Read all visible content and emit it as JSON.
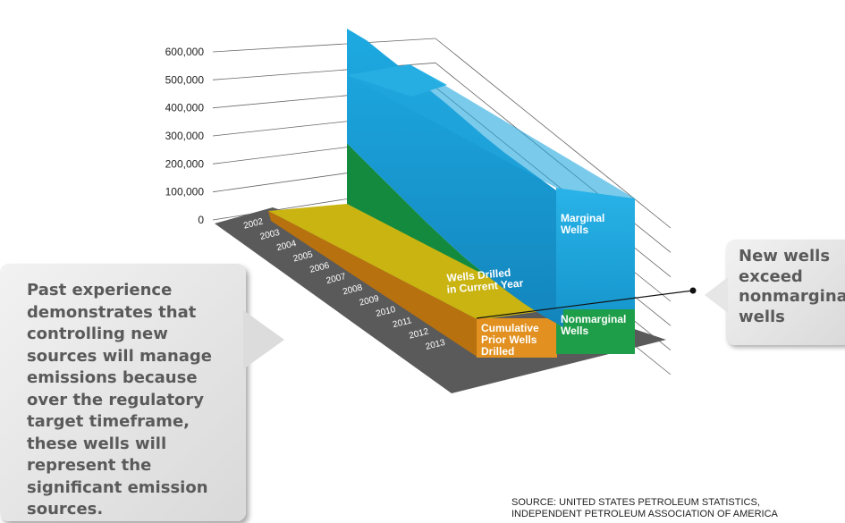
{
  "colors": {
    "marginal": "#1a9fd6",
    "nonmarginal": "#1f9e4a",
    "cumulative": "#e2901f",
    "current_year": "#c9b412",
    "floor": "#5a5a5a",
    "gridline": "#666666"
  },
  "chart_data": {
    "type": "area",
    "title": "",
    "xlabel": "",
    "ylabel": "",
    "ylim": [
      0,
      600000
    ],
    "y_ticks": [
      "0",
      "100,000",
      "200,000",
      "300,000",
      "400,000",
      "500,000",
      "600,000"
    ],
    "y_tick_values": [
      0,
      100000,
      200000,
      300000,
      400000,
      500000,
      600000
    ],
    "x": [
      "2002",
      "2003",
      "2004",
      "2005",
      "2006",
      "2007",
      "2008",
      "2009",
      "2010",
      "2011",
      "2012",
      "2013"
    ],
    "series": [
      {
        "name": "Marginal Wells",
        "values": [
          480000,
          475000,
          462000,
          450000,
          438000,
          425000,
          410000,
          395000,
          382000,
          372000,
          362000,
          352000
        ]
      },
      {
        "name": "Nonmarginal Wells",
        "values": [
          170000,
          150000,
          130000,
          110000,
          90000,
          72000,
          55000,
          42000,
          30000,
          20000,
          13000,
          10000
        ]
      },
      {
        "name": "Cumulative Prior Wells Drilled",
        "values": [
          0,
          8000,
          16000,
          24000,
          32000,
          40000,
          48000,
          56000,
          64000,
          72000,
          80000,
          88000
        ]
      },
      {
        "name": "Wells Drilled in Current Year",
        "values": [
          35000,
          35000,
          35000,
          35000,
          35000,
          35000,
          35000,
          35000,
          35000,
          35000,
          35000,
          35000
        ]
      }
    ],
    "labels": {
      "marginal": [
        "Marginal",
        "Wells"
      ],
      "nonmarginal": [
        "Nonmarginal",
        "Wells"
      ],
      "cumulative": [
        "Cumulative",
        "Prior Wells",
        "Drilled"
      ],
      "current_year": [
        "Wells Drilled",
        "in Current Year"
      ]
    }
  },
  "callouts": {
    "left": "Past experience demonstrates that controlling new sources will manage emissions because over the regulatory target timeframe, these wells will represent the significant emission sources.",
    "right": "New wells\nexceed\nnonmarginal\nwells"
  },
  "source": "SOURCE: UNITED STATES PETROLEUM STATISTICS,\nINDEPENDENT PETROLEUM ASSOCIATION OF AMERICA"
}
